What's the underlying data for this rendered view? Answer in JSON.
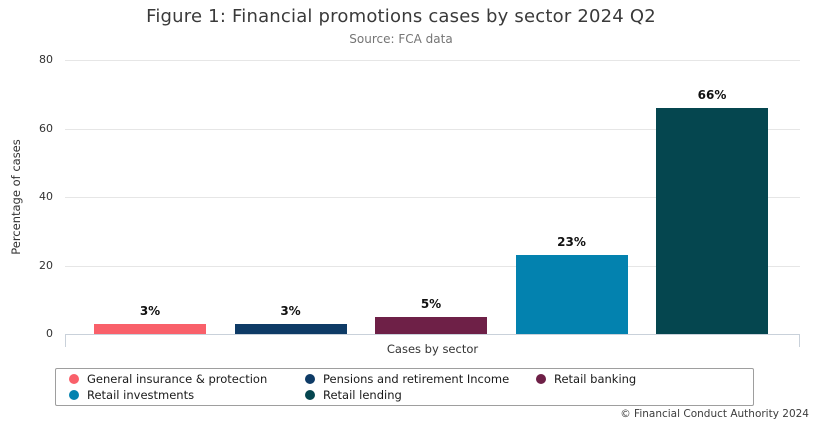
{
  "header": {
    "title": "Figure 1: Financial promotions cases by sector 2024 Q2",
    "subtitle": "Source: FCA data"
  },
  "footer": {
    "copyright": "© Financial Conduct Authority 2024"
  },
  "chart_data": {
    "type": "bar",
    "title": "Figure 1: Financial promotions cases by sector 2024 Q2",
    "subtitle": "Source: FCA data",
    "xlabel": "Cases by sector",
    "ylabel": "Percentage of cases",
    "ylim": [
      0,
      80
    ],
    "yticks": [
      0,
      20,
      40,
      60,
      80
    ],
    "grid": true,
    "legend_position": "bottom",
    "categories": [
      "General insurance & protection",
      "Pensions and retirement Income",
      "Retail banking",
      "Retail investments",
      "Retail lending"
    ],
    "values": [
      3,
      3,
      5,
      23,
      66
    ],
    "value_labels": [
      "3%",
      "3%",
      "5%",
      "23%",
      "66%"
    ],
    "colors": [
      "#F9606A",
      "#0E3B66",
      "#6E2047",
      "#0382AF",
      "#05464F"
    ]
  }
}
